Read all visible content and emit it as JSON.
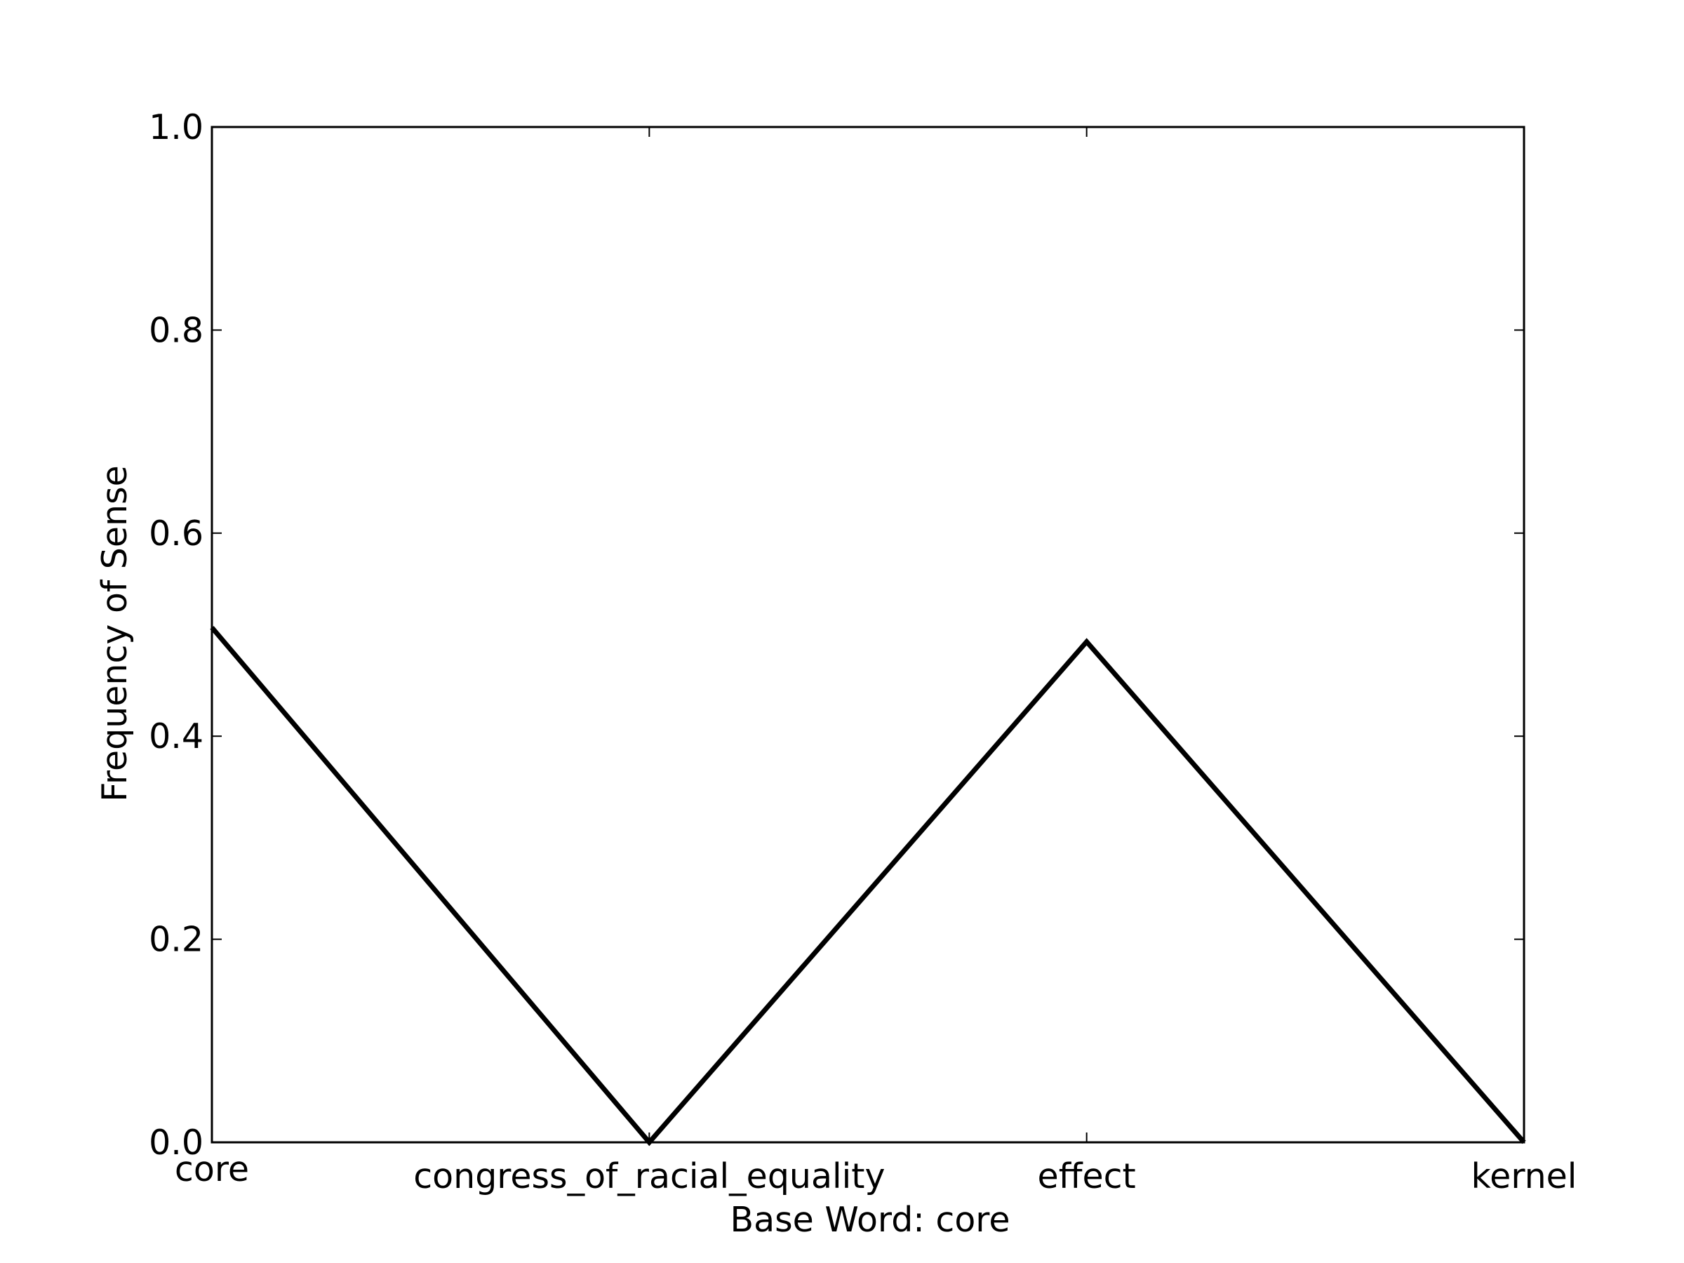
{
  "chart_data": {
    "type": "line",
    "title": "",
    "xlabel": "Base Word: core",
    "ylabel": "Frequency of Sense",
    "categories": [
      "core",
      "congress_of_racial_equality",
      "effect",
      "kernel"
    ],
    "series": [
      {
        "values": [
          0.507,
          0.0,
          0.493,
          0.0
        ]
      }
    ],
    "ylim": [
      0,
      1
    ],
    "yticks": [
      "0.0",
      "0.2",
      "0.4",
      "0.6",
      "0.8",
      "1.0"
    ],
    "grid": false,
    "legend": "none",
    "line_color": "#000000"
  }
}
